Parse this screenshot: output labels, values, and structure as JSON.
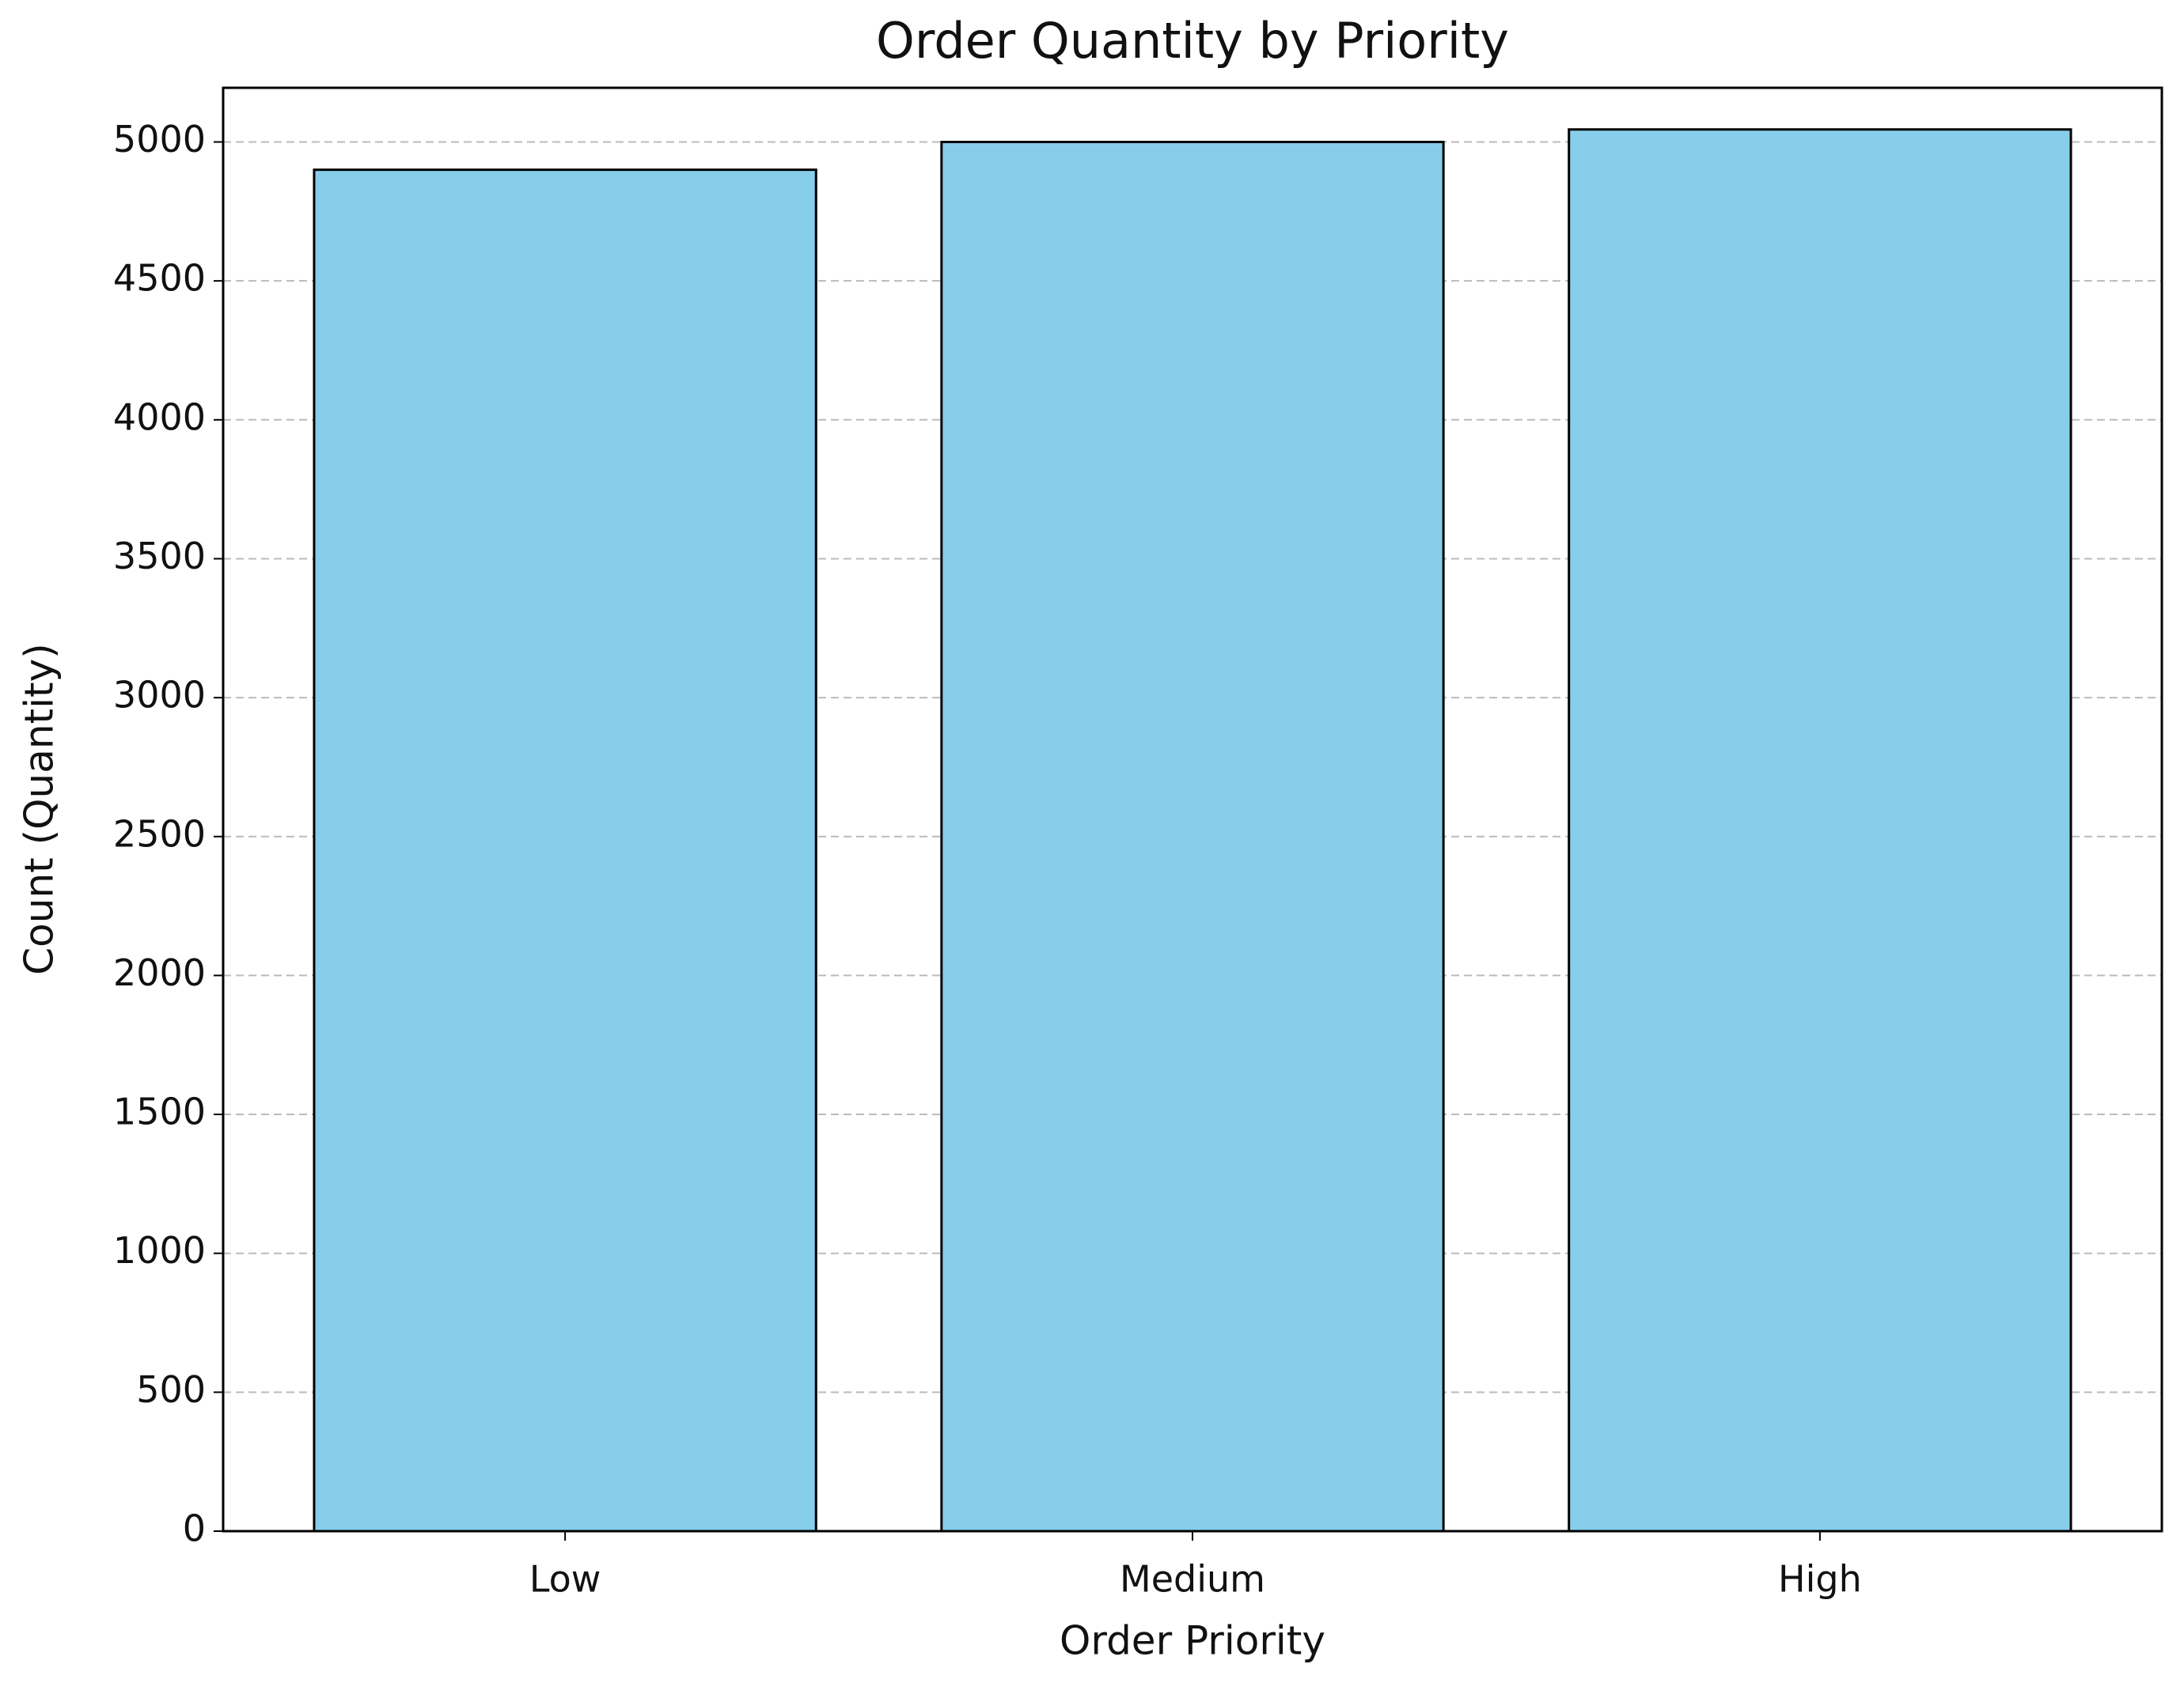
{
  "chart_data": {
    "type": "bar",
    "title": "Order Quantity by Priority",
    "x_label": "Order Priority",
    "y_label": "Count (Quantity)",
    "categories": [
      "Low",
      "Medium",
      "High"
    ],
    "values": [
      4900,
      5000,
      5045
    ],
    "color": "#87ceeb",
    "ylim": [
      0,
      5195
    ],
    "yticks": [
      0,
      500,
      1000,
      1500,
      2000,
      2500,
      3000,
      3500,
      4000,
      4500,
      5000
    ],
    "grid": true
  }
}
